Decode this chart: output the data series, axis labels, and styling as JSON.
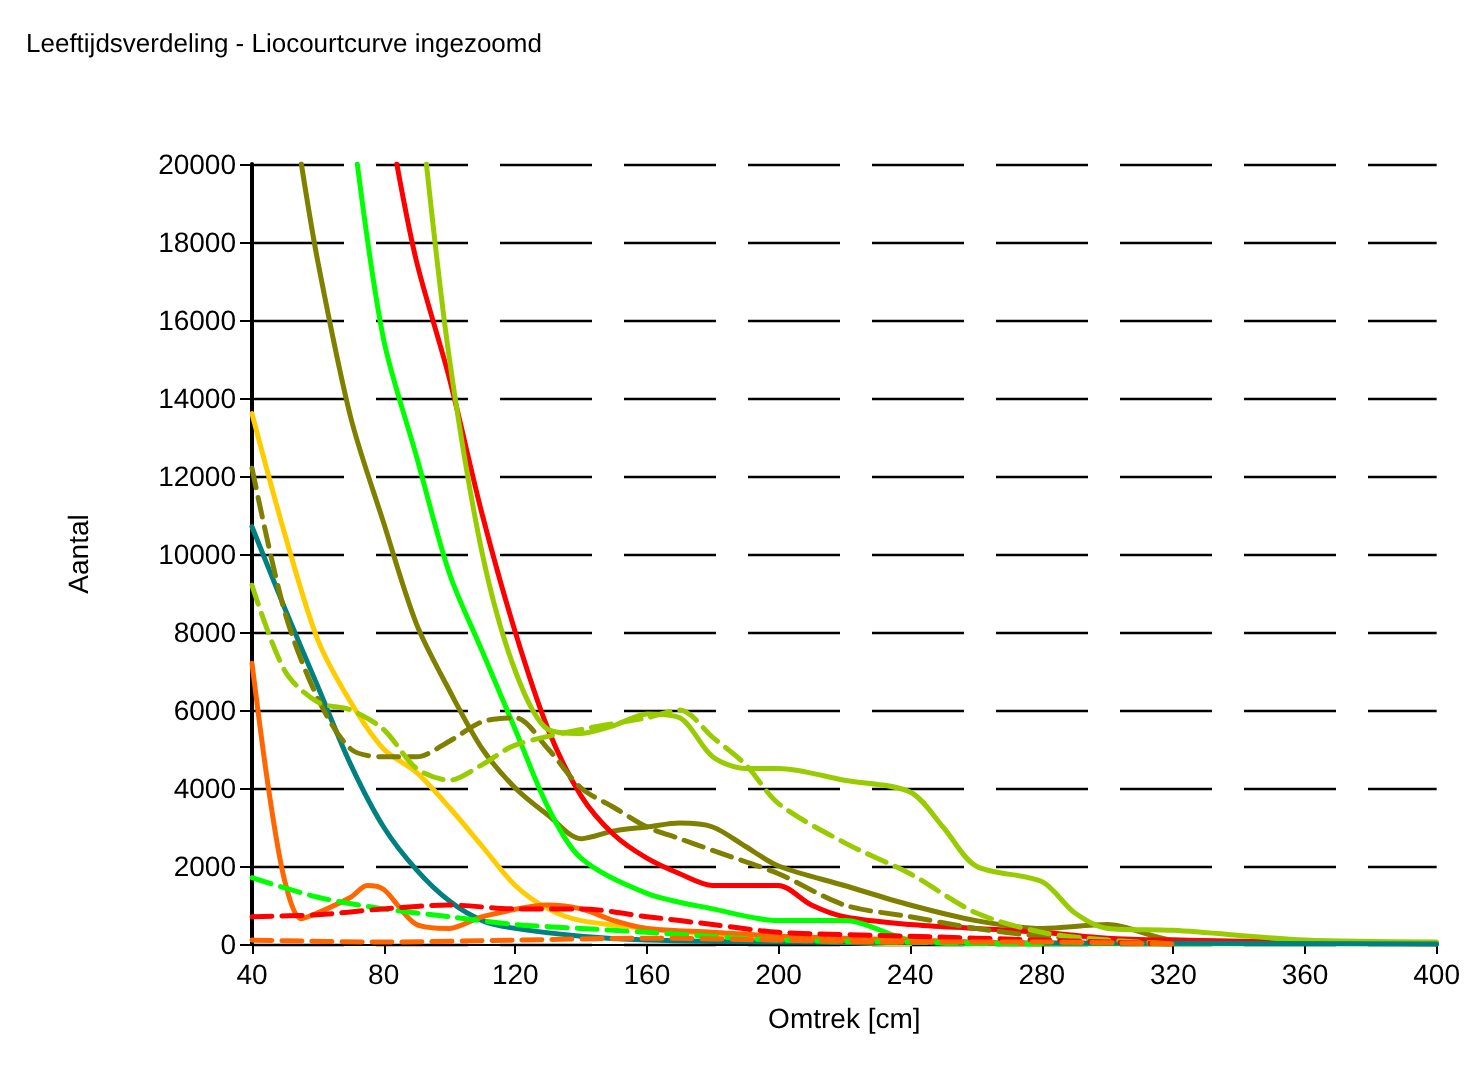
{
  "chart_data": {
    "type": "line",
    "title": "Leeftijdsverdeling - Liocourtcurve ingezoomd",
    "xlabel": "Omtrek [cm]",
    "ylabel": "Aantal",
    "xlim": [
      40,
      400
    ],
    "xticks": [
      40,
      80,
      120,
      160,
      200,
      240,
      280,
      320,
      360,
      400
    ],
    "ylim": [
      0,
      20000
    ],
    "yticks": [
      0,
      2000,
      4000,
      6000,
      8000,
      10000,
      12000,
      14000,
      16000,
      18000,
      20000
    ],
    "grid": "y",
    "marker": "none",
    "series": [
      {
        "color": "#808000",
        "line_style": "solid",
        "x": [
          55,
          60,
          70,
          80,
          90,
          100,
          110,
          120,
          130,
          140,
          150,
          160,
          170,
          180,
          190,
          200,
          220,
          240,
          260,
          280,
          300,
          320,
          360,
          400
        ],
        "values": [
          20000,
          17500,
          13500,
          10800,
          8200,
          6500,
          5000,
          4000,
          3300,
          2700,
          2900,
          3000,
          3100,
          3000,
          2500,
          2000,
          1500,
          1000,
          600,
          400,
          500,
          100,
          50,
          0
        ]
      },
      {
        "color": "#ff0000",
        "line_style": "solid",
        "x": [
          84,
          90,
          100,
          110,
          120,
          130,
          140,
          150,
          160,
          170,
          180,
          190,
          200,
          210,
          220,
          240,
          260,
          280,
          300,
          320,
          360,
          400
        ],
        "values": [
          20000,
          17500,
          14500,
          11000,
          8000,
          5500,
          3800,
          2800,
          2200,
          1800,
          1500,
          1500,
          1500,
          1000,
          700,
          500,
          400,
          300,
          150,
          100,
          50,
          0
        ]
      },
      {
        "color": "#00ff00",
        "line_style": "solid",
        "x": [
          72,
          80,
          90,
          100,
          110,
          120,
          130,
          140,
          160,
          180,
          200,
          220,
          240,
          260,
          400
        ],
        "values": [
          20000,
          15500,
          12500,
          9500,
          7500,
          5500,
          3500,
          2200,
          1300,
          900,
          600,
          600,
          100,
          0,
          0
        ]
      },
      {
        "color": "#99cc00",
        "line_style": "solid",
        "x": [
          93,
          100,
          110,
          120,
          130,
          140,
          150,
          160,
          170,
          180,
          190,
          200,
          220,
          240,
          250,
          260,
          280,
          290,
          300,
          320,
          360,
          400
        ],
        "values": [
          20000,
          15000,
          10000,
          7000,
          5500,
          5400,
          5600,
          5900,
          5800,
          4800,
          4500,
          4500,
          4200,
          3900,
          3000,
          2000,
          1600,
          800,
          400,
          350,
          100,
          50
        ]
      },
      {
        "color": "#ffcc00",
        "line_style": "solid",
        "x": [
          40,
          50,
          60,
          70,
          80,
          90,
          100,
          110,
          120,
          130,
          140,
          160,
          180,
          200,
          240
        ],
        "values": [
          13600,
          10500,
          7800,
          6200,
          5000,
          4400,
          3500,
          2500,
          1500,
          900,
          600,
          400,
          250,
          100,
          0
        ]
      },
      {
        "color": "#008080",
        "line_style": "solid",
        "x": [
          40,
          50,
          60,
          70,
          80,
          90,
          100,
          110,
          120,
          140,
          160,
          200,
          400
        ],
        "values": [
          10700,
          8600,
          6600,
          4600,
          3000,
          1900,
          1100,
          600,
          400,
          200,
          100,
          50,
          0
        ]
      },
      {
        "color": "#ff6600",
        "line_style": "solid",
        "x": [
          40,
          45,
          50,
          55,
          60,
          70,
          75,
          80,
          90,
          100,
          110,
          130,
          140,
          150,
          160,
          180,
          200,
          240,
          280
        ],
        "values": [
          7200,
          4000,
          1600,
          650,
          800,
          1200,
          1500,
          1400,
          500,
          400,
          700,
          1000,
          900,
          600,
          400,
          300,
          200,
          100,
          0
        ]
      },
      {
        "color": "#808000",
        "line_style": "dashed",
        "x": [
          40,
          50,
          60,
          70,
          80,
          90,
          100,
          110,
          120,
          130,
          140,
          150,
          160,
          170,
          180,
          200,
          220,
          240,
          260,
          280,
          300,
          320
        ],
        "values": [
          12200,
          8500,
          6300,
          5000,
          4800,
          4800,
          5200,
          5700,
          5800,
          5000,
          4000,
          3500,
          3000,
          2700,
          2400,
          1800,
          1000,
          700,
          400,
          200,
          100,
          0
        ]
      },
      {
        "color": "#99cc00",
        "line_style": "dashed",
        "x": [
          40,
          50,
          60,
          70,
          80,
          90,
          100,
          110,
          120,
          140,
          160,
          170,
          180,
          190,
          200,
          220,
          240,
          260,
          280,
          300,
          320
        ],
        "values": [
          9200,
          7000,
          6200,
          6000,
          5500,
          4500,
          4200,
          4600,
          5100,
          5500,
          5800,
          6000,
          5300,
          4600,
          3600,
          2600,
          1800,
          800,
          300,
          100,
          0
        ]
      },
      {
        "color": "#00ff00",
        "line_style": "dashed",
        "x": [
          40,
          60,
          80,
          100,
          120,
          140,
          160,
          200,
          240,
          280
        ],
        "values": [
          1700,
          1200,
          900,
          700,
          500,
          400,
          300,
          100,
          50,
          0
        ]
      },
      {
        "color": "#ff0000",
        "line_style": "dashed",
        "x": [
          40,
          60,
          80,
          100,
          120,
          140,
          160,
          180,
          200,
          240,
          280,
          320
        ],
        "values": [
          700,
          750,
          900,
          1000,
          900,
          900,
          700,
          500,
          300,
          200,
          100,
          0
        ]
      },
      {
        "color": "#ff6600",
        "line_style": "dashed",
        "x": [
          40,
          80,
          120,
          160,
          200,
          240,
          280,
          320
        ],
        "values": [
          100,
          50,
          100,
          150,
          100,
          50,
          50,
          0
        ]
      }
    ]
  }
}
